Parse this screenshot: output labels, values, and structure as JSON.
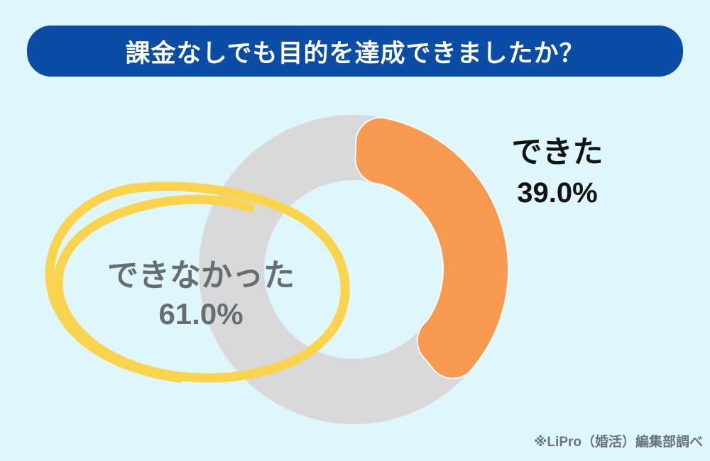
{
  "header": {
    "title": "課金なしでも目的を達成できましたか？"
  },
  "chart_data": {
    "type": "pie",
    "subtype": "donut",
    "title": "課金なしでも目的を達成できましたか？",
    "categories": [
      "できた",
      "できなかった"
    ],
    "values": [
      39.0,
      61.0
    ],
    "slice_labels": [
      {
        "name": "できた",
        "value_text": "39.0%"
      },
      {
        "name": "できなかった",
        "value_text": "61.0%"
      }
    ],
    "colors": [
      "#f79a4f",
      "#d9d9d9"
    ],
    "start_angle_deg": 0,
    "direction": "clockwise",
    "rounded_segment_ends": true,
    "legend_position": "outside-labels",
    "highlight": {
      "slice": "できなかった",
      "style": "hand-drawn-circle",
      "color": "#fbd44e"
    }
  },
  "footer": {
    "source": "※LiPro（婚活）編集部調べ"
  },
  "colors": {
    "background": "#def7fc",
    "header_bg": "#0b4da6",
    "header_text": "#ffffff",
    "label_dark": "#121212",
    "label_gray": "#686d74",
    "footer_gray": "#6b7280"
  }
}
